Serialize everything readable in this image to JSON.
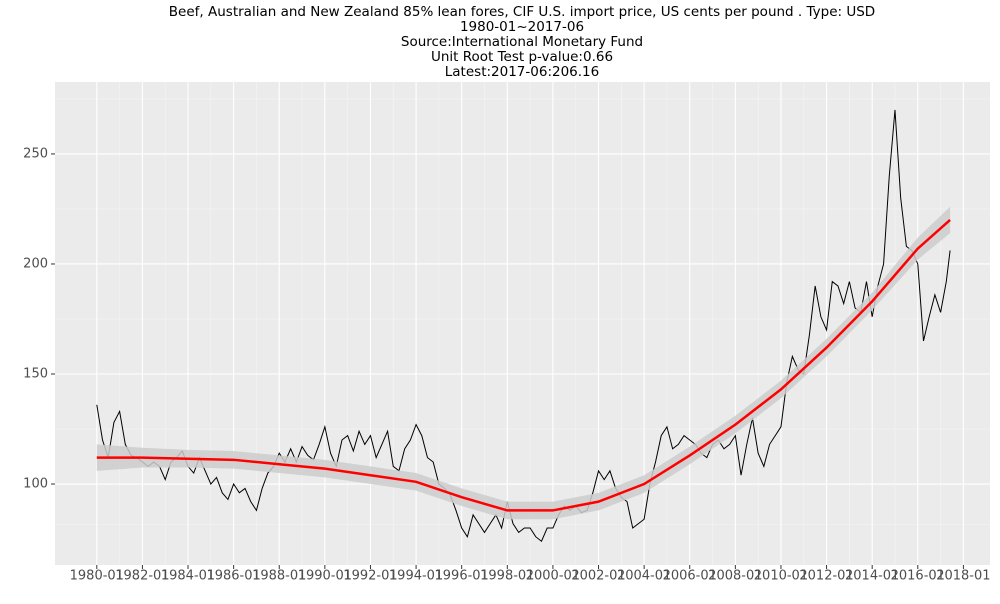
{
  "chart_data": {
    "type": "line",
    "title": "Beef, Australian and New Zealand 85% lean fores, CIF U.S. import price, US cents per pound . Type: USD",
    "date_range": "1980-01~2017-06",
    "source": "Source:International Monetary Fund",
    "unit_root_test": "Unit Root Test p-value:0.66",
    "latest": "Latest:2017-06:206.16",
    "xlim": [
      "1978-03",
      "2019-03"
    ],
    "xticks": [
      "1980-01",
      "1982-01",
      "1984-01",
      "1986-01",
      "1988-01",
      "1990-01",
      "1992-01",
      "1994-01",
      "1996-01",
      "1998-01",
      "2000-01",
      "2002-01",
      "2004-01",
      "2006-01",
      "2008-01",
      "2010-01",
      "2012-01",
      "2014-01",
      "2016-01",
      "2018-01"
    ],
    "ylim": [
      63.2,
      282.7
    ],
    "yticks": [
      100,
      150,
      200,
      250
    ],
    "grid": true,
    "series": [
      {
        "color": "#000000",
        "x": [
          "1980-01",
          "1980-04",
          "1980-07",
          "1980-10",
          "1981-01",
          "1981-04",
          "1981-07",
          "1981-10",
          "1982-01",
          "1982-04",
          "1982-07",
          "1982-10",
          "1983-01",
          "1983-04",
          "1983-07",
          "1983-10",
          "1984-01",
          "1984-04",
          "1984-07",
          "1984-10",
          "1985-01",
          "1985-04",
          "1985-07",
          "1985-10",
          "1986-01",
          "1986-04",
          "1986-07",
          "1986-10",
          "1987-01",
          "1987-04",
          "1987-07",
          "1987-10",
          "1988-01",
          "1988-04",
          "1988-07",
          "1988-10",
          "1989-01",
          "1989-04",
          "1989-07",
          "1989-10",
          "1990-01",
          "1990-04",
          "1990-07",
          "1990-10",
          "1991-01",
          "1991-04",
          "1991-07",
          "1991-10",
          "1992-01",
          "1992-04",
          "1992-07",
          "1992-10",
          "1993-01",
          "1993-04",
          "1993-07",
          "1993-10",
          "1994-01",
          "1994-04",
          "1994-07",
          "1994-10",
          "1995-01",
          "1995-04",
          "1995-07",
          "1995-10",
          "1996-01",
          "1996-04",
          "1996-07",
          "1996-10",
          "1997-01",
          "1997-04",
          "1997-07",
          "1997-10",
          "1998-01",
          "1998-04",
          "1998-07",
          "1998-10",
          "1999-01",
          "1999-04",
          "1999-07",
          "1999-10",
          "2000-01",
          "2000-04",
          "2000-07",
          "2000-10",
          "2001-01",
          "2001-04",
          "2001-07",
          "2001-10",
          "2002-01",
          "2002-04",
          "2002-07",
          "2002-10",
          "2003-01",
          "2003-04",
          "2003-07",
          "2003-10",
          "2004-01",
          "2004-04",
          "2004-07",
          "2004-10",
          "2005-01",
          "2005-04",
          "2005-07",
          "2005-10",
          "2006-01",
          "2006-04",
          "2006-07",
          "2006-10",
          "2007-01",
          "2007-04",
          "2007-07",
          "2007-10",
          "2008-01",
          "2008-04",
          "2008-07",
          "2008-10",
          "2009-01",
          "2009-04",
          "2009-07",
          "2009-10",
          "2010-01",
          "2010-04",
          "2010-07",
          "2010-10",
          "2011-01",
          "2011-04",
          "2011-07",
          "2011-10",
          "2012-01",
          "2012-04",
          "2012-07",
          "2012-10",
          "2013-01",
          "2013-04",
          "2013-07",
          "2013-10",
          "2014-01",
          "2014-04",
          "2014-07",
          "2014-10",
          "2015-01",
          "2015-04",
          "2015-07",
          "2015-10",
          "2016-01",
          "2016-04",
          "2016-07",
          "2016-10",
          "2017-01",
          "2017-04",
          "2017-06"
        ],
        "values": [
          136,
          120,
          112,
          128,
          133,
          118,
          113,
          112,
          110,
          108,
          110,
          108,
          102,
          110,
          112,
          115,
          108,
          105,
          112,
          106,
          100,
          103,
          96,
          93,
          100,
          96,
          98,
          92,
          88,
          98,
          105,
          108,
          114,
          110,
          116,
          110,
          117,
          113,
          111,
          118,
          126,
          114,
          108,
          120,
          122,
          115,
          124,
          118,
          122,
          112,
          118,
          124,
          108,
          106,
          116,
          120,
          127,
          122,
          112,
          110,
          100,
          98,
          95,
          88,
          80,
          76,
          86,
          82,
          78,
          82,
          86,
          80,
          92,
          82,
          78,
          80,
          80,
          76,
          74,
          80,
          80,
          86,
          90,
          88,
          90,
          87,
          88,
          96,
          106,
          102,
          106,
          98,
          94,
          92,
          80,
          82,
          84,
          100,
          110,
          122,
          126,
          116,
          118,
          122,
          120,
          118,
          114,
          112,
          118,
          120,
          116,
          118,
          122,
          104,
          118,
          130,
          114,
          108,
          118,
          122,
          126,
          146,
          158,
          152,
          150,
          168,
          190,
          176,
          170,
          192,
          190,
          182,
          192,
          180,
          178,
          192,
          176,
          190,
          200,
          240,
          270,
          230,
          208,
          206,
          200,
          165,
          176,
          186,
          178,
          192,
          206.16
        ]
      },
      {
        "color": "#ff0000",
        "band_color": "#cccccc",
        "x": [
          "1980-01",
          "1982-01",
          "1984-01",
          "1986-01",
          "1988-01",
          "1990-01",
          "1992-01",
          "1994-01",
          "1996-01",
          "1998-01",
          "2000-01",
          "2002-01",
          "2004-01",
          "2006-01",
          "2008-01",
          "2010-01",
          "2012-01",
          "2014-01",
          "2016-01",
          "2017-06"
        ],
        "values": [
          112,
          112,
          111.5,
          111,
          109,
          107,
          104,
          101,
          94,
          88,
          88,
          92,
          100,
          113,
          127,
          143,
          162,
          183,
          207,
          220
        ],
        "upper": [
          118,
          116.5,
          115.5,
          115,
          113,
          111,
          108,
          105,
          98,
          92,
          92,
          96,
          104,
          117,
          131,
          147,
          166,
          187,
          212,
          226
        ],
        "lower": [
          106,
          107.5,
          107.5,
          107,
          105,
          103,
          100,
          97,
          90,
          84,
          84,
          88,
          96,
          109,
          123,
          139,
          158,
          179,
          202,
          214
        ]
      }
    ]
  }
}
